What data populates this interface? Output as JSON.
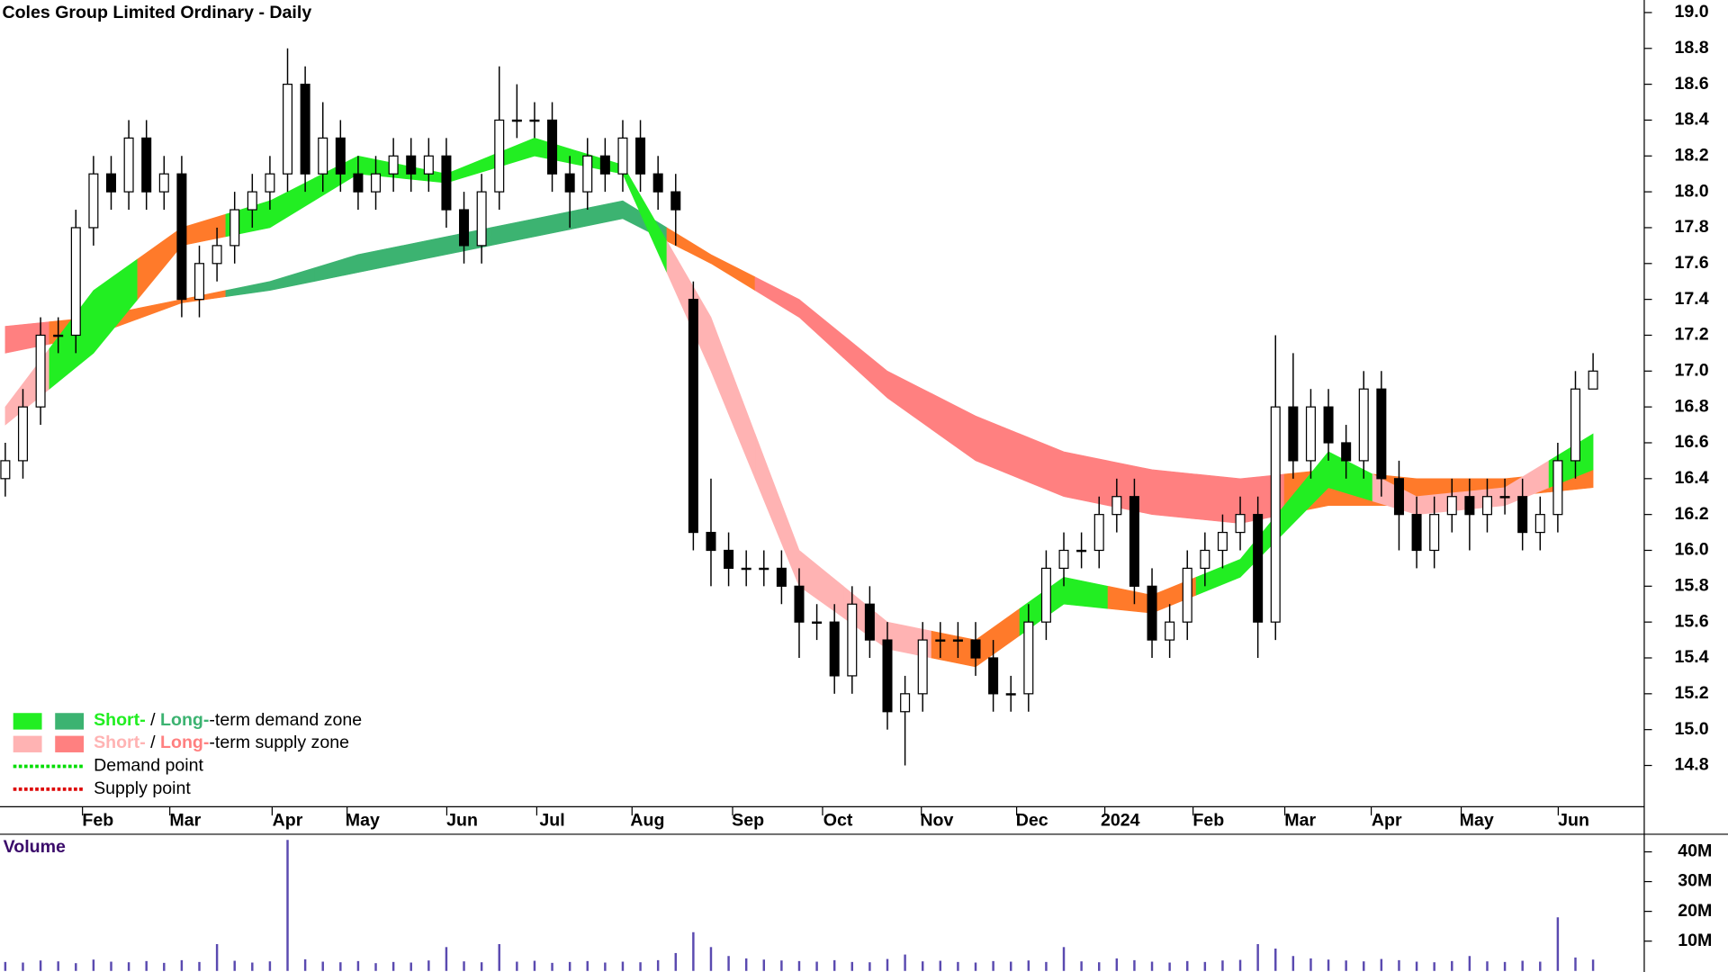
{
  "chart_data": [
    {
      "type": "candlestick",
      "title": "Coles Group Limited Ordinary - Daily",
      "xlim": [
        -0.3,
        92.9
      ],
      "xticks": [
        {
          "value": 5.25,
          "label": "Feb"
        },
        {
          "value": 10.2,
          "label": "Mar"
        },
        {
          "value": 16,
          "label": "Apr"
        },
        {
          "value": 20.25,
          "label": "May"
        },
        {
          "value": 25.9,
          "label": "Jun"
        },
        {
          "value": 31,
          "label": "Jul"
        },
        {
          "value": 36.4,
          "label": "Aug"
        },
        {
          "value": 42.1,
          "label": "Sep"
        },
        {
          "value": 47.2,
          "label": "Oct"
        },
        {
          "value": 52.8,
          "label": "Nov"
        },
        {
          "value": 58.2,
          "label": "Dec"
        },
        {
          "value": 63.2,
          "label": "2024"
        },
        {
          "value": 68.2,
          "label": "Feb"
        },
        {
          "value": 73.4,
          "label": "Mar"
        },
        {
          "value": 78.3,
          "label": "Apr"
        },
        {
          "value": 83.4,
          "label": "May"
        },
        {
          "value": 88.9,
          "label": "Jun"
        }
      ],
      "ylim": [
        14.57,
        19.07
      ],
      "yticks": [
        14.8,
        {
          "value": 15,
          "label": "15.0"
        },
        15.2,
        15.4,
        15.6,
        15.8,
        {
          "value": 16,
          "label": "16.0"
        },
        16.2,
        16.4,
        16.6,
        16.8,
        {
          "value": 17,
          "label": "17.0"
        },
        17.2,
        17.4,
        17.6,
        17.8,
        {
          "value": 18,
          "label": "18.0"
        },
        18.2,
        18.4,
        18.6,
        18.8,
        {
          "value": 19,
          "label": "19.0"
        }
      ],
      "up_color": "#ffffff",
      "down_color": "#000000",
      "open": [
        16.4,
        16.5,
        16.8,
        17.2,
        17.2,
        17.8,
        18.1,
        18.0,
        18.3,
        18.0,
        18.1,
        17.4,
        17.6,
        17.7,
        17.9,
        18.0,
        18.1,
        18.6,
        18.1,
        18.3,
        18.1,
        18.0,
        18.1,
        18.2,
        18.1,
        18.2,
        17.9,
        17.7,
        18.0,
        18.4,
        18.4,
        18.4,
        18.1,
        18.0,
        18.2,
        18.1,
        18.3,
        18.1,
        18.0,
        17.4,
        16.1,
        16.0,
        15.9,
        15.9,
        15.9,
        15.8,
        15.6,
        15.6,
        15.3,
        15.7,
        15.5,
        15.1,
        15.2,
        15.5,
        15.5,
        15.5,
        15.4,
        15.2,
        15.2,
        15.6,
        15.9,
        16.0,
        16.0,
        16.2,
        16.3,
        15.8,
        15.5,
        15.6,
        15.9,
        16.0,
        16.1,
        16.2,
        15.6,
        16.8,
        16.5,
        16.8,
        16.6,
        16.5,
        16.9,
        16.4,
        16.2,
        16.0,
        16.2,
        16.3,
        16.2,
        16.3,
        16.3,
        16.1,
        16.2,
        16.5,
        16.9
      ],
      "high": [
        16.6,
        16.9,
        17.3,
        17.3,
        17.9,
        18.2,
        18.2,
        18.4,
        18.4,
        18.2,
        18.2,
        17.7,
        17.8,
        18.0,
        18.1,
        18.2,
        18.8,
        18.7,
        18.5,
        18.4,
        18.2,
        18.2,
        18.3,
        18.3,
        18.3,
        18.3,
        18.0,
        18.1,
        18.7,
        18.6,
        18.5,
        18.5,
        18.2,
        18.3,
        18.3,
        18.4,
        18.4,
        18.2,
        18.1,
        17.5,
        16.4,
        16.1,
        16.0,
        16.0,
        16.0,
        15.9,
        15.7,
        15.7,
        15.8,
        15.8,
        15.6,
        15.3,
        15.6,
        15.6,
        15.6,
        15.6,
        15.5,
        15.3,
        15.7,
        16.0,
        16.1,
        16.1,
        16.3,
        16.4,
        16.4,
        15.9,
        15.7,
        16.0,
        16.1,
        16.2,
        16.3,
        16.3,
        17.2,
        17.1,
        16.9,
        16.9,
        16.7,
        17.0,
        17.0,
        16.5,
        16.3,
        16.3,
        16.4,
        16.4,
        16.4,
        16.4,
        16.4,
        16.3,
        16.6,
        17.0,
        17.1
      ],
      "low": [
        16.3,
        16.4,
        16.7,
        17.1,
        17.1,
        17.7,
        17.9,
        17.9,
        17.9,
        17.9,
        17.3,
        17.3,
        17.5,
        17.6,
        17.8,
        17.9,
        18.0,
        18.0,
        18.0,
        18.0,
        17.9,
        17.9,
        18.0,
        18.0,
        18.0,
        17.8,
        17.6,
        17.6,
        17.9,
        18.3,
        18.3,
        18.0,
        17.8,
        17.9,
        18.0,
        18.0,
        18.0,
        17.9,
        17.7,
        16.0,
        15.8,
        15.8,
        15.8,
        15.8,
        15.7,
        15.4,
        15.5,
        15.2,
        15.2,
        15.4,
        15.0,
        14.8,
        15.1,
        15.4,
        15.4,
        15.3,
        15.1,
        15.1,
        15.1,
        15.5,
        15.8,
        15.9,
        15.9,
        16.1,
        15.7,
        15.4,
        15.4,
        15.5,
        15.8,
        15.9,
        16.0,
        15.4,
        15.5,
        16.4,
        16.4,
        16.5,
        16.4,
        16.4,
        16.3,
        16.0,
        15.9,
        15.9,
        16.1,
        16.0,
        16.1,
        16.2,
        16.0,
        16.0,
        16.1,
        16.4,
        16.9
      ],
      "close": [
        16.5,
        16.8,
        17.2,
        17.2,
        17.8,
        18.1,
        18.0,
        18.3,
        18.0,
        18.1,
        17.4,
        17.6,
        17.7,
        17.9,
        18.0,
        18.1,
        18.6,
        18.1,
        18.3,
        18.1,
        18.0,
        18.1,
        18.2,
        18.1,
        18.2,
        17.9,
        17.7,
        18.0,
        18.4,
        18.4,
        18.4,
        18.1,
        18.0,
        18.2,
        18.1,
        18.3,
        18.1,
        18.0,
        17.9,
        16.1,
        16.0,
        15.9,
        15.9,
        15.9,
        15.8,
        15.6,
        15.6,
        15.3,
        15.7,
        15.5,
        15.1,
        15.2,
        15.5,
        15.5,
        15.5,
        15.4,
        15.2,
        15.2,
        15.6,
        15.9,
        16.0,
        16.0,
        16.2,
        16.3,
        15.8,
        15.5,
        15.6,
        15.9,
        16.0,
        16.1,
        16.2,
        15.6,
        16.8,
        16.5,
        16.8,
        16.6,
        16.5,
        16.9,
        16.4,
        16.2,
        16.0,
        16.2,
        16.3,
        16.2,
        16.3,
        16.3,
        16.1,
        16.2,
        16.5,
        16.9,
        17.0
      ],
      "zones": [
        {
          "x": [
            0,
            5,
            10,
            15,
            20,
            25,
            30,
            35,
            40,
            45,
            50,
            55,
            60,
            65,
            70,
            75,
            80,
            85,
            90
          ],
          "upper": [
            17.25,
            17.3,
            17.4,
            17.5,
            17.65,
            17.75,
            17.85,
            17.95,
            17.65,
            17.4,
            17.0,
            16.75,
            16.55,
            16.45,
            16.4,
            16.45,
            16.4,
            16.4,
            16.45
          ],
          "lower": [
            17.1,
            17.2,
            17.38,
            17.45,
            17.55,
            17.65,
            17.75,
            17.85,
            17.6,
            17.3,
            16.85,
            16.5,
            16.3,
            16.2,
            16.15,
            16.25,
            16.25,
            16.3,
            16.35
          ],
          "colors": [
            "#ff8080",
            "#ff7a2a",
            "#ff7a2a",
            "#3cb371",
            "#3cb371",
            "#3cb371",
            "#3cb371",
            "#3cb371",
            "#ff7a2a",
            "#ff8080",
            "#ff8080",
            "#ff8080",
            "#ff8080",
            "#ff8080",
            "#ff8080",
            "#ff7a2a",
            "#ff7a2a",
            "#ff7a2a",
            "#ff7a2a"
          ]
        },
        {
          "x": [
            0,
            5,
            10,
            15,
            20,
            25,
            30,
            35,
            40,
            45,
            50,
            55,
            60,
            65,
            70,
            75,
            80,
            85,
            90
          ],
          "upper": [
            16.8,
            17.45,
            17.8,
            17.95,
            18.2,
            18.1,
            18.3,
            18.15,
            17.3,
            16.0,
            15.6,
            15.5,
            15.85,
            15.75,
            15.95,
            16.55,
            16.3,
            16.35,
            16.65
          ],
          "lower": [
            16.7,
            17.1,
            17.7,
            17.8,
            18.1,
            18.05,
            18.2,
            18.1,
            17.0,
            15.8,
            15.45,
            15.35,
            15.7,
            15.65,
            15.85,
            16.35,
            16.2,
            16.25,
            16.45
          ],
          "colors": [
            "#ffb3b3",
            "#22ee22",
            "#ff7a2a",
            "#22ee22",
            "#22ee22",
            "#22ee22",
            "#22ee22",
            "#22ee22",
            "#ffb3b3",
            "#ffb3b3",
            "#ffb3b3",
            "#ff7a2a",
            "#22ee22",
            "#ff7a2a",
            "#22ee22",
            "#22ee22",
            "#ffb3b3",
            "#ffb3b3",
            "#22ee22"
          ]
        }
      ],
      "legend": [
        {
          "short": "Short-",
          "sep": " / ",
          "long": "Long-",
          "rest": "-term demand zone",
          "short_color": "#22ee22",
          "long_color": "#3cb371"
        },
        {
          "short": "Short-",
          "sep": " / ",
          "long": "Long-",
          "rest": "-term supply zone",
          "short_color": "#ffb3b3",
          "long_color": "#ff8080"
        },
        {
          "name": "Demand point",
          "color": "#00dd00"
        },
        {
          "name": "Supply point",
          "color": "#dd0000"
        }
      ]
    },
    {
      "type": "bar",
      "ylabel": "Volume",
      "color": "#5a4ab0",
      "xlim": [
        -0.3,
        92.9
      ],
      "ylim": [
        0,
        44800000
      ],
      "yticks": [
        {
          "value": 10000000,
          "label": "10M"
        },
        {
          "value": 20000000,
          "label": "20M"
        },
        {
          "value": 30000000,
          "label": "30M"
        },
        {
          "value": 40000000,
          "label": "40M"
        }
      ],
      "values": [
        3000000,
        2800000,
        3500000,
        3200000,
        2600000,
        3800000,
        3100000,
        2900000,
        3300000,
        2700000,
        3600000,
        3000000,
        9000000,
        3400000,
        2800000,
        3200000,
        44000000,
        3900000,
        3100000,
        2900000,
        3300000,
        2600000,
        3000000,
        2800000,
        3500000,
        8000000,
        3200000,
        2900000,
        9000000,
        3100000,
        3400000,
        2700000,
        3000000,
        3300000,
        2800000,
        3100000,
        2900000,
        3600000,
        6000000,
        13000000,
        8000000,
        5000000,
        4200000,
        3800000,
        3500000,
        3300000,
        3100000,
        3600000,
        3000000,
        2900000,
        4000000,
        5500000,
        3200000,
        3400000,
        3000000,
        2800000,
        3300000,
        3100000,
        3500000,
        3000000,
        8000000,
        3200000,
        2900000,
        4200000,
        3600000,
        3100000,
        2800000,
        3300000,
        3000000,
        3500000,
        3700000,
        9000000,
        7500000,
        5000000,
        4200000,
        3800000,
        3500000,
        3200000,
        4000000,
        3600000,
        3100000,
        2900000,
        3300000,
        5000000,
        3200000,
        3000000,
        3400000,
        3100000,
        18000000,
        4500000,
        3800000
      ]
    }
  ]
}
